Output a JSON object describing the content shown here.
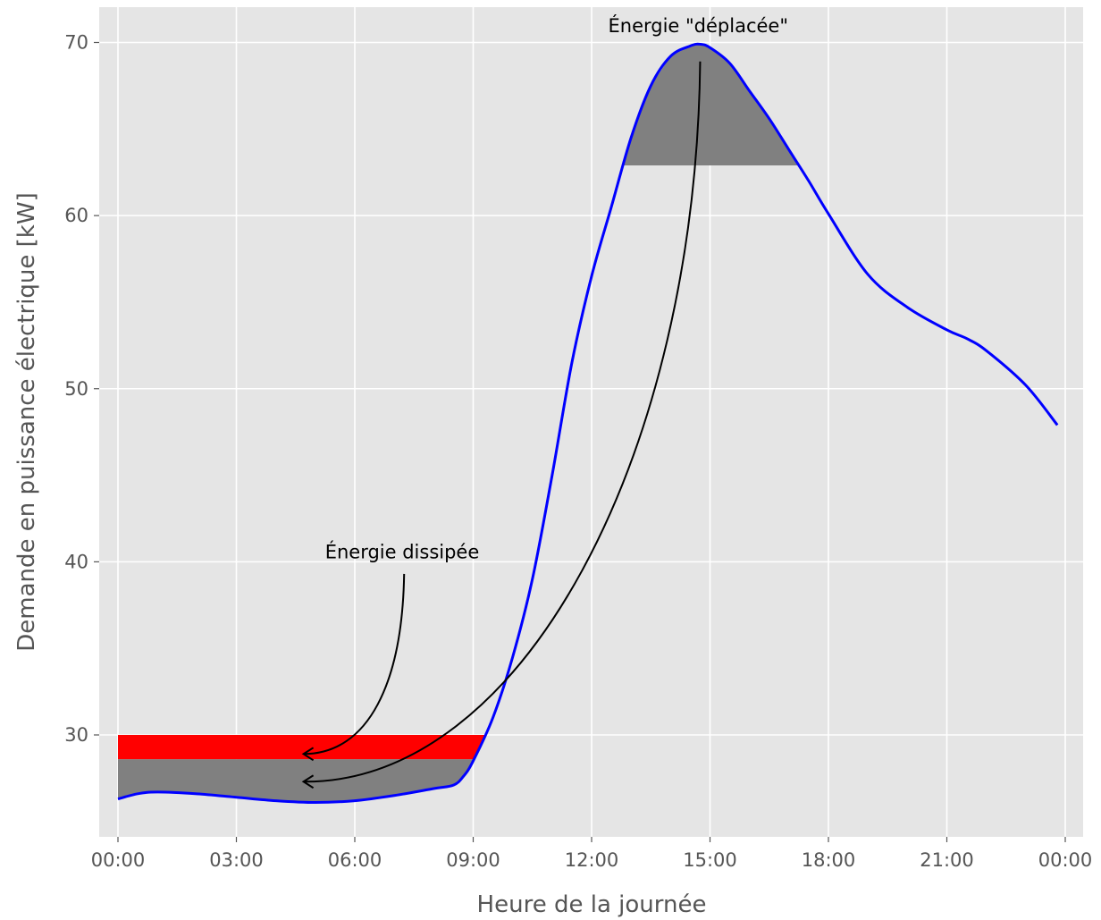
{
  "chart_data": {
    "type": "line",
    "title": "",
    "xlabel": "Heure de la journée",
    "ylabel": "Demande en puissance électrique [kW]",
    "xlim": [
      -0.5,
      24.5
    ],
    "ylim": [
      24.3,
      72
    ],
    "xticks": [
      {
        "value": 0,
        "label": "00:00"
      },
      {
        "value": 3,
        "label": "03:00"
      },
      {
        "value": 6,
        "label": "06:00"
      },
      {
        "value": 9,
        "label": "09:00"
      },
      {
        "value": 12,
        "label": "12:00"
      },
      {
        "value": 15,
        "label": "15:00"
      },
      {
        "value": 18,
        "label": "18:00"
      },
      {
        "value": 21,
        "label": "21:00"
      },
      {
        "value": 24,
        "label": "00:00"
      }
    ],
    "yticks": [
      {
        "value": 30,
        "label": "30"
      },
      {
        "value": 40,
        "label": "40"
      },
      {
        "value": 50,
        "label": "50"
      },
      {
        "value": 60,
        "label": "60"
      },
      {
        "value": 70,
        "label": "70"
      }
    ],
    "grid": true,
    "series": [
      {
        "color": "#0000ff",
        "points": [
          [
            0,
            26.3
          ],
          [
            0.5,
            26.6
          ],
          [
            1,
            26.7
          ],
          [
            2,
            26.6
          ],
          [
            3,
            26.4
          ],
          [
            4,
            26.2
          ],
          [
            5,
            26.1
          ],
          [
            6,
            26.2
          ],
          [
            7,
            26.5
          ],
          [
            8,
            26.9
          ],
          [
            8.5,
            27.1
          ],
          [
            8.75,
            27.6
          ],
          [
            9,
            28.5
          ],
          [
            9.5,
            31
          ],
          [
            10,
            34.5
          ],
          [
            10.5,
            39
          ],
          [
            11,
            45
          ],
          [
            11.5,
            51.5
          ],
          [
            12,
            56.5
          ],
          [
            12.5,
            60.5
          ],
          [
            13,
            64.5
          ],
          [
            13.5,
            67.5
          ],
          [
            14,
            69.2
          ],
          [
            14.5,
            69.8
          ],
          [
            14.75,
            69.9
          ],
          [
            15,
            69.7
          ],
          [
            15.5,
            68.8
          ],
          [
            16,
            67.2
          ],
          [
            16.5,
            65.6
          ],
          [
            17,
            63.8
          ],
          [
            17.5,
            62
          ],
          [
            18,
            60.1
          ],
          [
            19,
            56.6
          ],
          [
            20,
            54.7
          ],
          [
            21,
            53.4
          ],
          [
            21.5,
            52.9
          ],
          [
            22,
            52.2
          ],
          [
            23,
            50.2
          ],
          [
            23.8,
            47.9
          ]
        ]
      }
    ],
    "fills": [
      {
        "name": "base_band",
        "color": "#808080",
        "x_start": 0,
        "x_end": 9.3,
        "y_top": 28.6
      },
      {
        "name": "red_band",
        "color": "#ff0000",
        "x_start": 0,
        "x_end": 9.3,
        "y_bottom": 28.6,
        "y_top": 30
      },
      {
        "name": "peak_cut",
        "color": "#808080",
        "y_floor": 62.9
      }
    ],
    "annotations": [
      {
        "text": "Énergie \"déplacée\"",
        "x": 14.7,
        "y": 70.6,
        "arrow_from": [
          14.75,
          68.9
        ],
        "arrow_to": [
          4.7,
          27.3
        ]
      },
      {
        "text": "Énergie dissipée",
        "x": 7.2,
        "y": 40.2,
        "arrow_from": [
          7.25,
          39.3
        ],
        "arrow_to": [
          4.7,
          28.9
        ]
      }
    ]
  }
}
